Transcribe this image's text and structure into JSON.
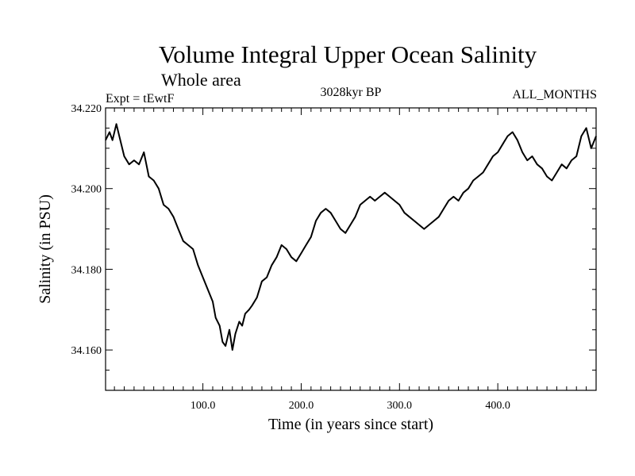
{
  "chart_data": {
    "type": "line",
    "title": "Volume Integral Upper Ocean Salinity",
    "subtitle": "Whole area",
    "experiment": "Expt = tEwtF",
    "period": "3028kyr BP",
    "months": "ALL_MONTHS",
    "xlabel": "Time (in years since start)",
    "ylabel": "Salinity (in PSU)",
    "xlim": [
      1,
      500
    ],
    "ylim": [
      34.15,
      34.22
    ],
    "x_ticks": [
      100,
      200,
      300,
      400
    ],
    "x_tick_labels": [
      "100.0",
      "200.0",
      "300.0",
      "400.0"
    ],
    "y_ticks": [
      34.16,
      34.18,
      34.2,
      34.22
    ],
    "y_tick_labels": [
      "34.160",
      "34.180",
      "34.200",
      "34.220"
    ],
    "grid": false,
    "series": [
      {
        "name": "Salinity",
        "color": "#000000",
        "x": [
          1,
          5,
          8,
          12,
          15,
          20,
          25,
          30,
          35,
          40,
          45,
          50,
          55,
          60,
          65,
          70,
          75,
          80,
          85,
          90,
          95,
          100,
          105,
          110,
          113,
          117,
          120,
          123,
          127,
          130,
          133,
          137,
          140,
          143,
          147,
          150,
          155,
          160,
          165,
          170,
          175,
          180,
          185,
          190,
          195,
          200,
          205,
          210,
          215,
          220,
          225,
          230,
          235,
          240,
          245,
          250,
          255,
          260,
          265,
          270,
          275,
          280,
          285,
          290,
          295,
          300,
          305,
          310,
          315,
          320,
          325,
          330,
          335,
          340,
          345,
          350,
          355,
          360,
          365,
          370,
          375,
          380,
          385,
          390,
          395,
          400,
          405,
          410,
          415,
          420,
          425,
          430,
          435,
          440,
          445,
          450,
          455,
          460,
          465,
          470,
          475,
          480,
          485,
          490,
          495,
          500
        ],
        "values": [
          34.212,
          34.214,
          34.212,
          34.216,
          34.213,
          34.208,
          34.206,
          34.207,
          34.206,
          34.209,
          34.203,
          34.202,
          34.2,
          34.196,
          34.195,
          34.193,
          34.19,
          34.187,
          34.186,
          34.185,
          34.181,
          34.178,
          34.175,
          34.172,
          34.168,
          34.166,
          34.162,
          34.161,
          34.165,
          34.16,
          34.164,
          34.167,
          34.166,
          34.169,
          34.17,
          34.171,
          34.173,
          34.177,
          34.178,
          34.181,
          34.183,
          34.186,
          34.185,
          34.183,
          34.182,
          34.184,
          34.186,
          34.188,
          34.192,
          34.194,
          34.195,
          34.194,
          34.192,
          34.19,
          34.189,
          34.191,
          34.193,
          34.196,
          34.197,
          34.198,
          34.197,
          34.198,
          34.199,
          34.198,
          34.197,
          34.196,
          34.194,
          34.193,
          34.192,
          34.191,
          34.19,
          34.191,
          34.192,
          34.193,
          34.195,
          34.197,
          34.198,
          34.197,
          34.199,
          34.2,
          34.202,
          34.203,
          34.204,
          34.206,
          34.208,
          34.209,
          34.211,
          34.213,
          34.214,
          34.212,
          34.209,
          34.207,
          34.208,
          34.206,
          34.205,
          34.203,
          34.202,
          34.204,
          34.206,
          34.205,
          34.207,
          34.208,
          34.213,
          34.215,
          34.21,
          34.213
        ]
      }
    ]
  }
}
